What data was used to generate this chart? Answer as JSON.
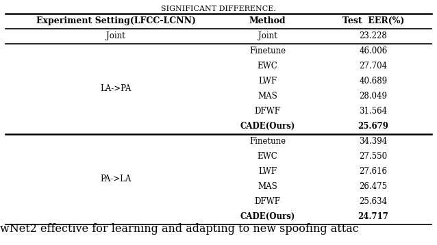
{
  "title_top": "SIGNIFICANT DIFFERENCE.",
  "col_headers": [
    "Experiment Setting(LFCC-LCNN)",
    "Method",
    "Test  EER(%)"
  ],
  "rows": [
    {
      "setting": "Joint",
      "method": "Joint",
      "eer": "23.228",
      "bold": false,
      "group": "joint"
    },
    {
      "setting": "LA->PA",
      "method": "Finetune",
      "eer": "46.006",
      "bold": false,
      "group": "la_pa"
    },
    {
      "setting": "",
      "method": "EWC",
      "eer": "27.704",
      "bold": false,
      "group": "la_pa"
    },
    {
      "setting": "",
      "method": "LWF",
      "eer": "40.689",
      "bold": false,
      "group": "la_pa"
    },
    {
      "setting": "",
      "method": "MAS",
      "eer": "28.049",
      "bold": false,
      "group": "la_pa"
    },
    {
      "setting": "",
      "method": "DFWF",
      "eer": "31.564",
      "bold": false,
      "group": "la_pa"
    },
    {
      "setting": "",
      "method": "CADE(Ours)",
      "eer": "25.679",
      "bold": true,
      "group": "la_pa"
    },
    {
      "setting": "PA->LA",
      "method": "Finetune",
      "eer": "34.394",
      "bold": false,
      "group": "pa_la"
    },
    {
      "setting": "",
      "method": "EWC",
      "eer": "27.550",
      "bold": false,
      "group": "pa_la"
    },
    {
      "setting": "",
      "method": "LWF",
      "eer": "27.616",
      "bold": false,
      "group": "pa_la"
    },
    {
      "setting": "",
      "method": "MAS",
      "eer": "26.475",
      "bold": false,
      "group": "pa_la"
    },
    {
      "setting": "",
      "method": "DFWF",
      "eer": "25.634",
      "bold": false,
      "group": "pa_la"
    },
    {
      "setting": "",
      "method": "CADE(Ours)",
      "eer": "24.717",
      "bold": true,
      "group": "pa_la"
    }
  ],
  "footer_text": "wNet2 effective for learning and adapting to new spoofing attac",
  "bg_color": "#ffffff",
  "text_color": "#000000",
  "font_size": 8.5,
  "header_font_size": 9.0,
  "footer_font_size": 11.5,
  "title_font_size": 8.0
}
